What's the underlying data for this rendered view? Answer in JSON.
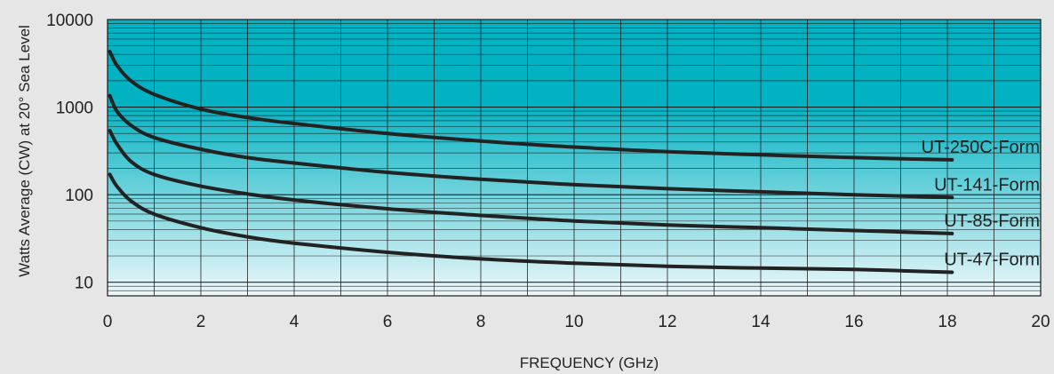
{
  "chart_data": {
    "type": "line",
    "xlabel": "FREQUENCY (GHz)",
    "ylabel": "Watts Average (CW) at 20° Sea Level",
    "xlim": [
      0,
      20
    ],
    "ylim": [
      7,
      10000
    ],
    "y_scale": "log",
    "x_ticks": [
      0,
      2,
      4,
      6,
      8,
      10,
      12,
      14,
      16,
      18,
      20
    ],
    "y_ticks": [
      10,
      100,
      1000,
      10000
    ],
    "grid": true,
    "series": [
      {
        "name": "UT-250C-Form",
        "x": [
          0.05,
          0.2,
          0.5,
          1,
          2,
          3,
          4,
          6,
          8,
          10,
          12,
          14,
          16,
          18.1
        ],
        "y": [
          4300,
          3000,
          2000,
          1400,
          950,
          760,
          650,
          500,
          410,
          350,
          310,
          285,
          265,
          250
        ]
      },
      {
        "name": "UT-141-Form",
        "x": [
          0.05,
          0.2,
          0.5,
          1,
          2,
          3,
          4,
          6,
          8,
          10,
          12,
          14,
          16,
          18.1
        ],
        "y": [
          1350,
          900,
          620,
          450,
          330,
          265,
          230,
          180,
          150,
          130,
          117,
          108,
          100,
          93
        ]
      },
      {
        "name": "UT-85-Form",
        "x": [
          0.05,
          0.2,
          0.5,
          1,
          2,
          3,
          4,
          6,
          8,
          10,
          12,
          14,
          16,
          18.1
        ],
        "y": [
          540,
          380,
          240,
          170,
          125,
          102,
          87,
          69,
          58,
          50,
          45,
          42,
          39,
          36
        ]
      },
      {
        "name": "UT-47-Form",
        "x": [
          0.05,
          0.2,
          0.5,
          1,
          2,
          3,
          4,
          6,
          8,
          10,
          12,
          14,
          16,
          18.1
        ],
        "y": [
          170,
          125,
          85,
          60,
          42,
          33,
          28,
          22,
          18.5,
          16.5,
          15.2,
          14.5,
          14,
          13
        ]
      }
    ],
    "colors": {
      "background": "#e6e6e6",
      "plot_top": "#00b2c2",
      "plot_bottom": "#eef8fa",
      "curves": "#222222",
      "grid": "#1a1a1a"
    }
  }
}
